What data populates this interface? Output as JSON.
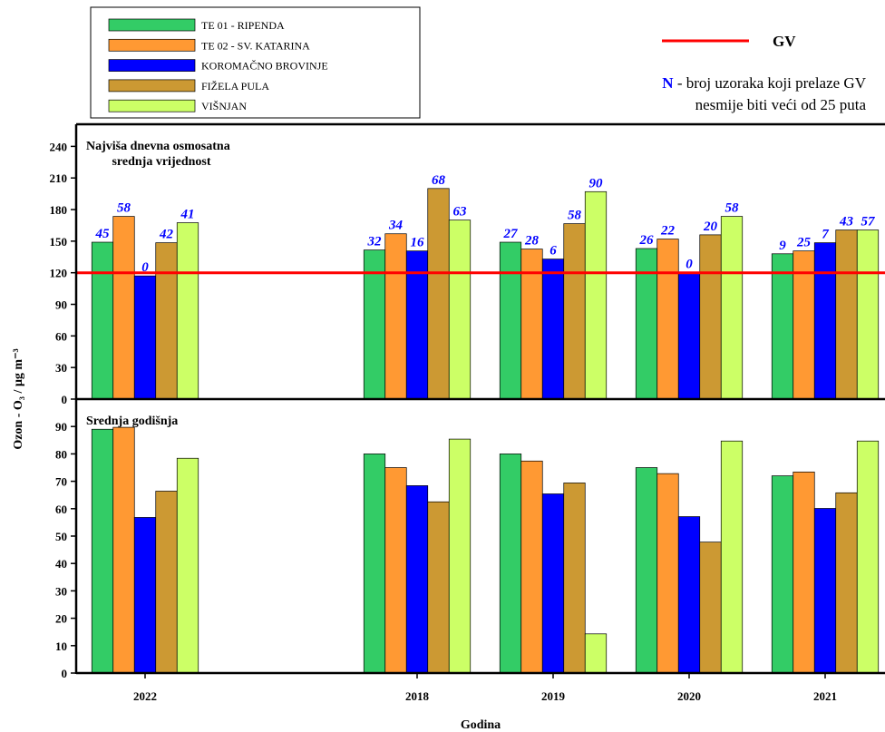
{
  "y_label": "Ozon - O₃ / µg m⁻³",
  "x_label": "Godina",
  "note": {
    "key": "N",
    "line1": "- broj uzoraka koji prelaze GV",
    "line2": "nesmije biti veći od 25 puta"
  },
  "chart_data": [
    {
      "type": "bar",
      "title": [
        "Najviša dnevna osmosatna",
        "srednja vrijednost"
      ],
      "ylim": [
        0,
        261
      ],
      "yticks": [
        0,
        30,
        60,
        90,
        120,
        150,
        180,
        210,
        240
      ],
      "reference_line": {
        "value": 120,
        "label": "GV",
        "color": "#ff0000"
      },
      "series": [
        {
          "name": "TE 01 - RIPENDA",
          "color": "#33cc66",
          "values": [
            149,
            null,
            141.6,
            149,
            143,
            138
          ],
          "exceedances": [
            45,
            null,
            32,
            27,
            26,
            9
          ]
        },
        {
          "name": "TE 02 - SV. KATARINA",
          "color": "#ff9933",
          "values": [
            173.5,
            null,
            157,
            142.5,
            152,
            140.7
          ],
          "exceedances": [
            58,
            null,
            34,
            28,
            22,
            25
          ]
        },
        {
          "name": "KOROMAČNO BROVINJE",
          "color": "#0000ff",
          "values": [
            117,
            null,
            140.7,
            133,
            120,
            148.5
          ],
          "exceedances": [
            0,
            null,
            16,
            6,
            0,
            7
          ]
        },
        {
          "name": "FIŽELA PULA",
          "color": "#cc9933",
          "values": [
            148.5,
            null,
            200,
            166.6,
            156,
            160.6
          ],
          "exceedances": [
            42,
            null,
            68,
            58,
            20,
            43
          ]
        },
        {
          "name": "VIŠNJAN",
          "color": "#ccff66",
          "values": [
            167.5,
            null,
            170,
            197,
            173.5,
            160.6
          ],
          "exceedances": [
            41,
            null,
            63,
            90,
            58,
            57
          ]
        }
      ]
    },
    {
      "type": "bar",
      "title": [
        "Srednja godišnja"
      ],
      "categories": [
        "2022",
        null,
        "2018",
        "2019",
        "2020",
        "2021"
      ],
      "ylim": [
        0,
        100
      ],
      "yticks": [
        0,
        10,
        20,
        30,
        40,
        50,
        60,
        70,
        80,
        90
      ],
      "series": [
        {
          "color": "#33cc66",
          "values": [
            89,
            null,
            80,
            80,
            75,
            72
          ]
        },
        {
          "color": "#ff9933",
          "values": [
            89.7,
            null,
            75,
            77.4,
            72.8,
            73.4
          ]
        },
        {
          "color": "#0000ff",
          "values": [
            56.8,
            null,
            68.4,
            65.4,
            57.1,
            60.1
          ]
        },
        {
          "color": "#cc9933",
          "values": [
            66.4,
            null,
            62.5,
            69.4,
            47.8,
            65.8
          ]
        },
        {
          "color": "#ccff66",
          "values": [
            78.4,
            null,
            85.4,
            14.3,
            84.7,
            84.7
          ]
        }
      ]
    }
  ]
}
